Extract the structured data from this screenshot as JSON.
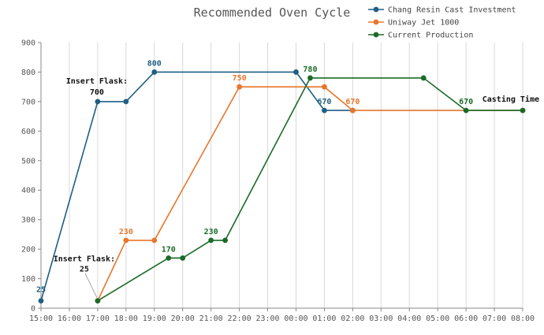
{
  "chart_data": {
    "type": "line",
    "title": "Recommended Oven Cycle",
    "xlabel": "",
    "ylabel": "",
    "xlim": [
      0,
      17
    ],
    "ylim": [
      0,
      900
    ],
    "grid": true,
    "legend_position": "top-right",
    "x_tick_labels": [
      "15:00",
      "16:00",
      "17:00",
      "18:00",
      "19:00",
      "20:00",
      "21:00",
      "22:00",
      "23:00",
      "00:00",
      "01:00",
      "02:00",
      "03:00",
      "04:00",
      "05:00",
      "06:00",
      "07:00",
      "08:00"
    ],
    "y_ticks": [
      0,
      100,
      200,
      300,
      400,
      500,
      600,
      700,
      800,
      900
    ],
    "series": [
      {
        "name": "Chang Resin Cast Investment",
        "color": "#1f5f84",
        "points": [
          [
            0,
            25
          ],
          [
            2,
            700
          ],
          [
            3,
            700
          ],
          [
            4,
            800
          ],
          [
            9,
            800
          ],
          [
            10,
            670
          ],
          [
            11,
            670
          ]
        ],
        "labels": [
          {
            "x": 0,
            "y": 25,
            "text": "25"
          },
          {
            "x": 4,
            "y": 800,
            "text": "800"
          },
          {
            "x": 10,
            "y": 670,
            "text": "670"
          }
        ]
      },
      {
        "name": "Uniway Jet 1000",
        "color": "#e8762c",
        "points": [
          [
            2,
            25
          ],
          [
            3,
            230
          ],
          [
            4,
            230
          ],
          [
            7,
            750
          ],
          [
            10,
            750
          ],
          [
            11,
            670
          ],
          [
            17,
            670
          ]
        ],
        "labels": [
          {
            "x": 3,
            "y": 230,
            "text": "230"
          },
          {
            "x": 7,
            "y": 750,
            "text": "750"
          },
          {
            "x": 11,
            "y": 670,
            "text": "670"
          }
        ]
      },
      {
        "name": "Current Production",
        "color": "#1b6b27",
        "points": [
          [
            2,
            25
          ],
          [
            4.5,
            170
          ],
          [
            5,
            170
          ],
          [
            6,
            230
          ],
          [
            6.5,
            230
          ],
          [
            9.5,
            780
          ],
          [
            13.5,
            780
          ],
          [
            15,
            670
          ],
          [
            17,
            670
          ]
        ],
        "labels": [
          {
            "x": 4.5,
            "y": 170,
            "text": "170"
          },
          {
            "x": 6,
            "y": 230,
            "text": "230"
          },
          {
            "x": 9.5,
            "y": 780,
            "text": "780"
          },
          {
            "x": 15,
            "y": 670,
            "text": "670"
          }
        ]
      }
    ],
    "annotations": [
      {
        "lines": [
          "Insert Flask:",
          "700"
        ],
        "x": 2,
        "y": 700
      },
      {
        "lines": [
          "Insert Flask:",
          "25"
        ],
        "x": 2,
        "y": 25
      },
      {
        "lines": [
          "Casting Time"
        ],
        "x": 17,
        "y": 670
      }
    ]
  }
}
